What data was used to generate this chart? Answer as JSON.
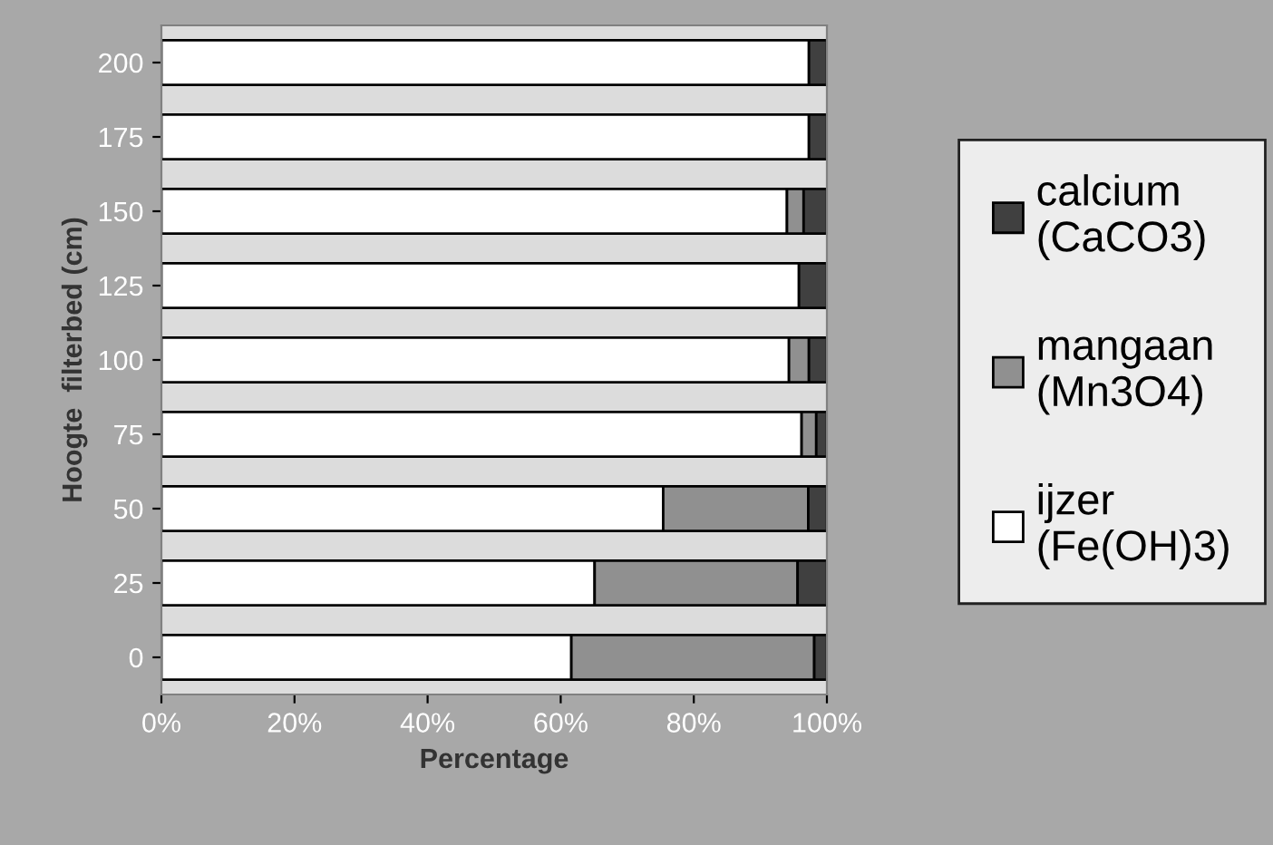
{
  "chart_data": {
    "type": "bar",
    "orientation": "horizontal",
    "stacked": true,
    "xlabel": "Percentage",
    "ylabel": "Hoogte  filterbed (cm)",
    "categories": [
      "200",
      "175",
      "150",
      "125",
      "100",
      "75",
      "50",
      "25",
      "0"
    ],
    "series": [
      {
        "name": "ijzer\n(Fe(OH)3)",
        "color": "#ffffff",
        "values": [
          97.3,
          97.3,
          94.0,
          95.8,
          94.3,
          96.2,
          75.4,
          65.1,
          61.6
        ]
      },
      {
        "name": "mangaan\n(Mn3O4)",
        "color": "#909090",
        "values": [
          null,
          null,
          2.5,
          null,
          3.0,
          2.2,
          21.8,
          30.5,
          36.5
        ]
      },
      {
        "name": "calcium\n(CaCO3)",
        "color": "#404040",
        "values": [
          2.7,
          2.7,
          3.5,
          4.2,
          2.7,
          1.6,
          2.8,
          4.4,
          1.9
        ]
      }
    ],
    "xlim": [
      0,
      100
    ],
    "xticks": [
      {
        "value": 0,
        "label": "0%"
      },
      {
        "value": 20,
        "label": "20%"
      },
      {
        "value": 40,
        "label": "40%"
      },
      {
        "value": 60,
        "label": "60%"
      },
      {
        "value": 80,
        "label": "80%"
      },
      {
        "value": 100,
        "label": "100%"
      }
    ],
    "grid": false,
    "legend": "right"
  }
}
